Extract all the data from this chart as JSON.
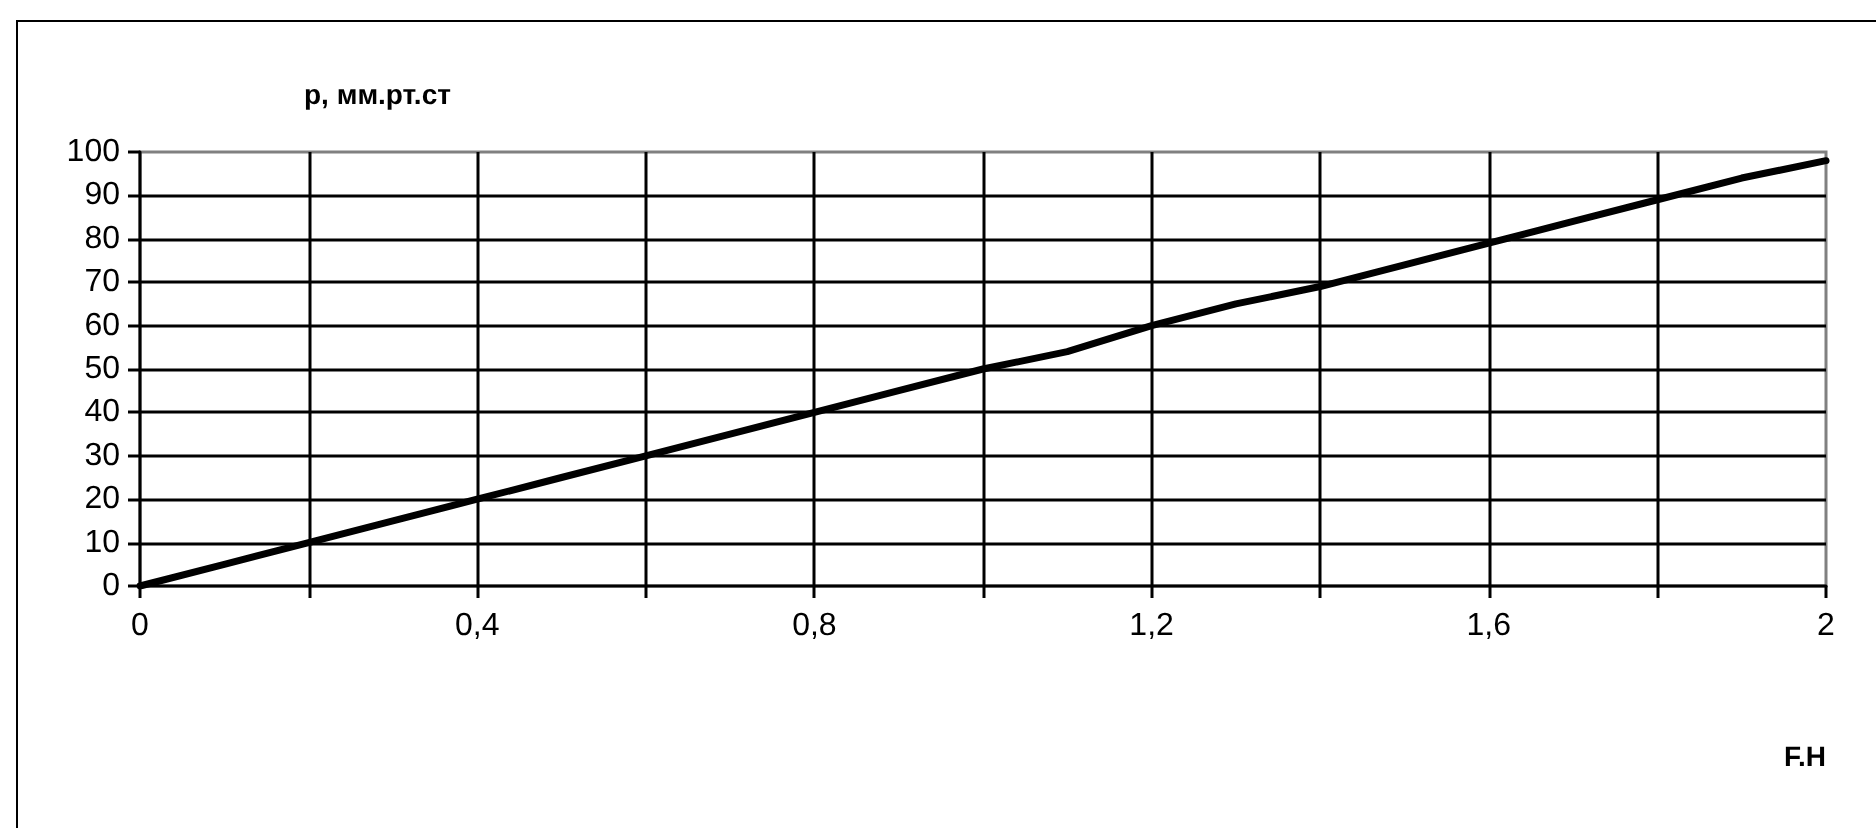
{
  "chart_data": {
    "type": "line",
    "ylabel": "р, мм.рт.ст",
    "xlabel": "F.H",
    "x": [
      0,
      0.1,
      0.2,
      0.3,
      0.4,
      0.5,
      0.6,
      0.7,
      0.8,
      0.9,
      1.0,
      1.1,
      1.2,
      1.3,
      1.4,
      1.5,
      1.6,
      1.7,
      1.8,
      1.9,
      2.0
    ],
    "values": [
      0,
      5,
      10,
      15,
      20,
      25,
      30,
      35,
      40,
      45,
      50,
      54,
      60,
      65,
      69,
      74,
      79,
      84,
      89,
      94,
      98
    ],
    "color": "#000000",
    "xlim": [
      0,
      2
    ],
    "xticks": [
      0,
      {
        "value": 0.2,
        "label": null
      },
      {
        "value": 0.4,
        "label": "0,4"
      },
      {
        "value": 0.6,
        "label": null
      },
      {
        "value": 0.8,
        "label": "0,8"
      },
      {
        "value": 1.0,
        "label": null
      },
      {
        "value": 1.2,
        "label": "1,2"
      },
      {
        "value": 1.4,
        "label": null
      },
      {
        "value": 1.6,
        "label": "1,6"
      },
      {
        "value": 1.8,
        "label": null
      },
      2
    ],
    "ylim": [
      0,
      100
    ],
    "yticks": [
      0,
      10,
      20,
      30,
      40,
      50,
      60,
      70,
      80,
      90,
      100
    ],
    "grid": true,
    "marker": "none",
    "line_style": "solid"
  }
}
